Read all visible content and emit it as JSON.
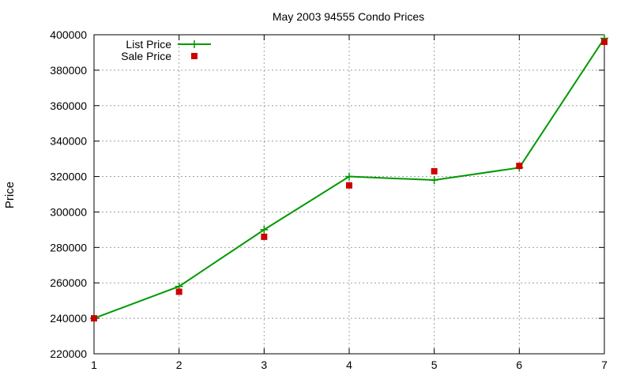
{
  "chart_data": {
    "type": "line",
    "title": "May 2003 94555 Condo Prices",
    "xlabel": "",
    "ylabel": "Price",
    "x": [
      1,
      2,
      3,
      4,
      5,
      6,
      7
    ],
    "xlim": [
      1,
      7
    ],
    "ylim": [
      220000,
      400000
    ],
    "x_ticks": [
      "1",
      "2",
      "3",
      "4",
      "5",
      "6",
      "7"
    ],
    "y_ticks": [
      "220000",
      "240000",
      "260000",
      "280000",
      "300000",
      "320000",
      "340000",
      "360000",
      "380000",
      "400000"
    ],
    "grid": true,
    "legend_position": "top-left",
    "series": [
      {
        "name": "List Price",
        "style": "line-with-plus-markers",
        "color": "#009900",
        "values": [
          240000,
          258000,
          290000,
          320000,
          318000,
          325000,
          398000
        ]
      },
      {
        "name": "Sale Price",
        "style": "square-points",
        "color": "#cc0000",
        "values": [
          240000,
          255000,
          286000,
          315000,
          323000,
          326000,
          396000
        ]
      }
    ]
  }
}
